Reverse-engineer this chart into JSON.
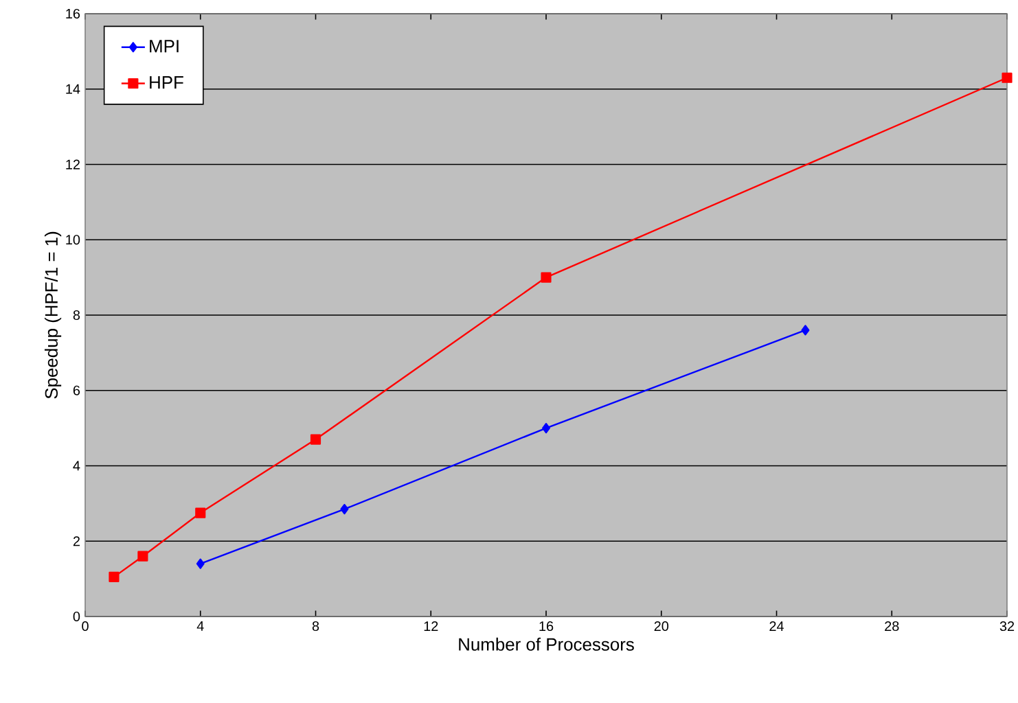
{
  "chart_data": {
    "type": "line",
    "xlabel": "Number of Processors",
    "ylabel": "Speedup  (HPF/1 = 1)",
    "xlim": [
      0,
      32
    ],
    "xticks": [
      0,
      4,
      8,
      12,
      16,
      20,
      24,
      28,
      32
    ],
    "ylim": [
      0,
      16
    ],
    "yticks": [
      0,
      2,
      4,
      6,
      8,
      10,
      12,
      14,
      16
    ],
    "grid": "y",
    "legend": "top left",
    "series": [
      {
        "name": "MPI",
        "color": "#0000ff",
        "marker": "diamond",
        "x": [
          4,
          9,
          16,
          25
        ],
        "values": [
          1.4,
          2.85,
          5.0,
          7.6
        ]
      },
      {
        "name": "HPF",
        "color": "#ff0000",
        "marker": "square",
        "x": [
          1,
          2,
          4,
          8,
          16,
          32
        ],
        "values": [
          1.05,
          1.6,
          2.75,
          4.7,
          9.0,
          14.3
        ]
      }
    ]
  }
}
